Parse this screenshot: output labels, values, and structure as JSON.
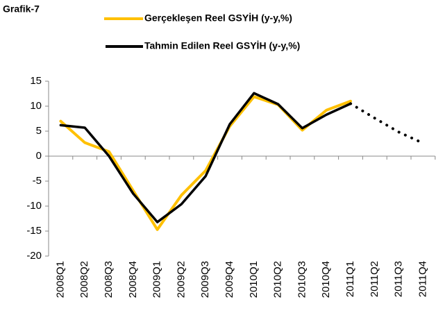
{
  "chart_data": {
    "type": "line",
    "title": "Grafik-7",
    "categories": [
      "2008Q1",
      "2008Q2",
      "2008Q3",
      "2008Q4",
      "2009Q1",
      "2009Q2",
      "2009Q3",
      "2009Q4",
      "2010Q1",
      "2010Q2",
      "2010Q3",
      "2010Q4",
      "2011Q1",
      "2011Q2",
      "2011Q3",
      "2011Q4"
    ],
    "series": [
      {
        "name": "Gerçekleşen Reel GSYİH (y-y,%)",
        "color": "#FFC000",
        "values": [
          7.0,
          2.7,
          0.9,
          -6.9,
          -14.7,
          -7.8,
          -2.9,
          6.0,
          11.9,
          10.3,
          5.2,
          9.2,
          11.0,
          null,
          null,
          null
        ]
      },
      {
        "name": "Tahmin Edilen Reel GSYİH (y-y,%)",
        "color": "#000000",
        "dotted_from": 13,
        "values": [
          6.2,
          5.7,
          0.0,
          -7.5,
          -13.2,
          -9.6,
          -4.0,
          6.4,
          12.6,
          10.4,
          5.6,
          8.3,
          10.5,
          7.6,
          4.8,
          2.6
        ]
      }
    ],
    "ylim": [
      -20,
      15
    ],
    "yticks": [
      -20,
      -15,
      -10,
      -5,
      0,
      5,
      10,
      15
    ],
    "grid": false
  }
}
